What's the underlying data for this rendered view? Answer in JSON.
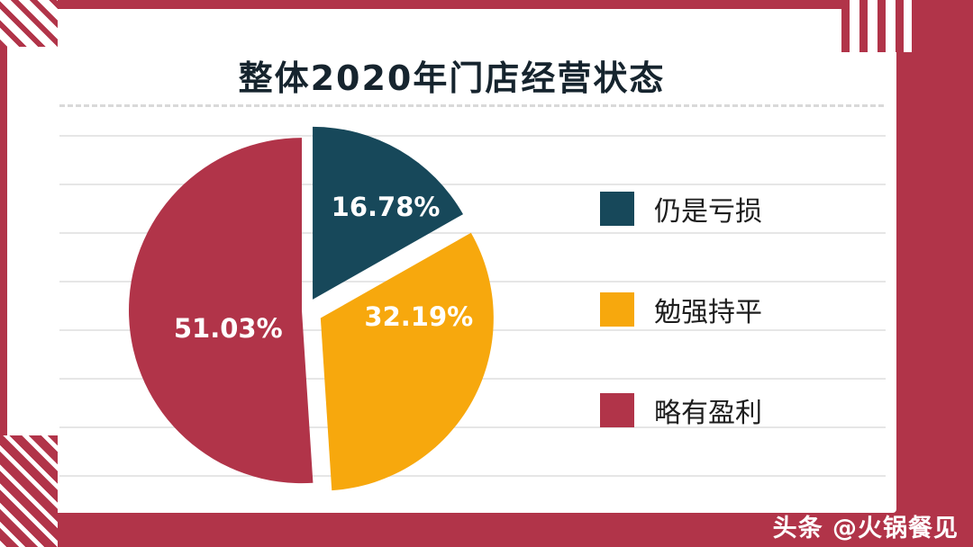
{
  "title": "整体2020年门店经营状态",
  "watermark": "头条 @火锅餐见",
  "colors": {
    "frame_red": "#b13449",
    "slice_teal": "#17485a",
    "slice_orange": "#f7a80d",
    "slice_crimson": "#b13449",
    "title_text": "#16242e",
    "gridline": "#e6e6e6",
    "card_background": "#ffffff"
  },
  "chart_data": {
    "type": "pie",
    "title": "整体2020年门店经营状态",
    "legend_position": "right",
    "grid": "horizontal-lines",
    "start_angle_deg": -90,
    "center": [
      332,
      335
    ],
    "radius": 192,
    "slices": [
      {
        "label": "仍是亏损",
        "value": 16.78,
        "display": "16.78%",
        "color": "#17485a",
        "explode": 14,
        "label_angle_deg": -52.6,
        "label_dist": 145
      },
      {
        "label": "勉强持平",
        "value": 32.19,
        "display": "32.19%",
        "color": "#f7a80d",
        "explode": 18,
        "label_angle_deg": 3.2,
        "label_dist": 125
      },
      {
        "label": "略有盈利",
        "value": 51.03,
        "display": "51.03%",
        "color": "#b13449",
        "explode": 5,
        "label_angle_deg": 167,
        "label_dist": 89
      }
    ]
  }
}
